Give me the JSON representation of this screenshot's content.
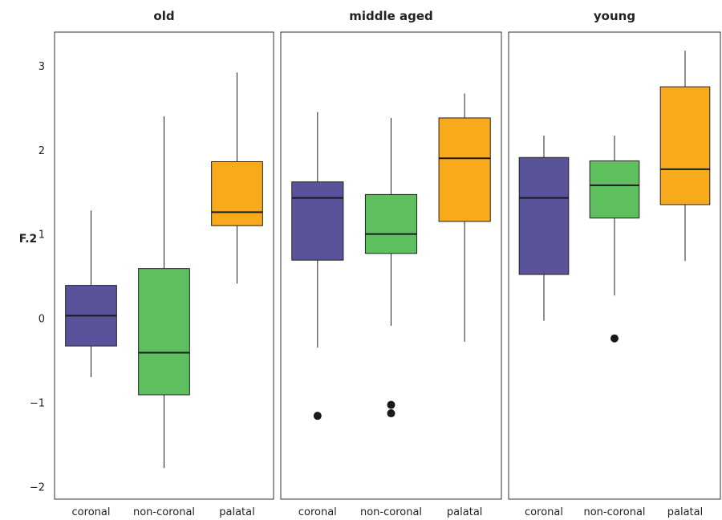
{
  "chart_data": {
    "type": "boxplot",
    "ylabel": "F.2",
    "ylim": [
      -2.15,
      3.4
    ],
    "yticks": [
      -2,
      -1,
      0,
      1,
      2,
      3
    ],
    "ytick_labels": [
      "−2",
      "−1",
      "0",
      "1",
      "2",
      "3"
    ],
    "categories": [
      "coronal",
      "non-coronal",
      "palatal"
    ],
    "colors": {
      "coronal": "#58539b",
      "non-coronal": "#5ebf5e",
      "palatal": "#f6aa1c"
    },
    "facets": [
      {
        "title": "old",
        "boxes": [
          {
            "category": "coronal",
            "whisker_low": -0.7,
            "q1": -0.33,
            "median": 0.03,
            "q3": 0.39,
            "whisker_high": 1.28,
            "outliers": []
          },
          {
            "category": "non-coronal",
            "whisker_low": -1.78,
            "q1": -0.91,
            "median": -0.41,
            "q3": 0.59,
            "whisker_high": 2.4,
            "outliers": []
          },
          {
            "category": "palatal",
            "whisker_low": 0.41,
            "q1": 1.1,
            "median": 1.26,
            "q3": 1.86,
            "whisker_high": 2.92,
            "outliers": []
          }
        ]
      },
      {
        "title": "middle aged",
        "boxes": [
          {
            "category": "coronal",
            "whisker_low": -0.35,
            "q1": 0.69,
            "median": 1.43,
            "q3": 1.62,
            "whisker_high": 2.45,
            "outliers": [
              -1.16
            ]
          },
          {
            "category": "non-coronal",
            "whisker_low": -0.09,
            "q1": 0.77,
            "median": 1.0,
            "q3": 1.47,
            "whisker_high": 2.38,
            "outliers": [
              -1.03,
              -1.13
            ]
          },
          {
            "category": "palatal",
            "whisker_low": -0.28,
            "q1": 1.15,
            "median": 1.9,
            "q3": 2.38,
            "whisker_high": 2.67,
            "outliers": []
          }
        ]
      },
      {
        "title": "young",
        "boxes": [
          {
            "category": "coronal",
            "whisker_low": -0.03,
            "q1": 0.52,
            "median": 1.43,
            "q3": 1.91,
            "whisker_high": 2.17,
            "outliers": []
          },
          {
            "category": "non-coronal",
            "whisker_low": 0.27,
            "q1": 1.19,
            "median": 1.58,
            "q3": 1.87,
            "whisker_high": 2.17,
            "outliers": [
              -0.24
            ]
          },
          {
            "category": "palatal",
            "whisker_low": 0.68,
            "q1": 1.35,
            "median": 1.77,
            "q3": 2.75,
            "whisker_high": 3.18,
            "outliers": []
          }
        ]
      }
    ]
  }
}
